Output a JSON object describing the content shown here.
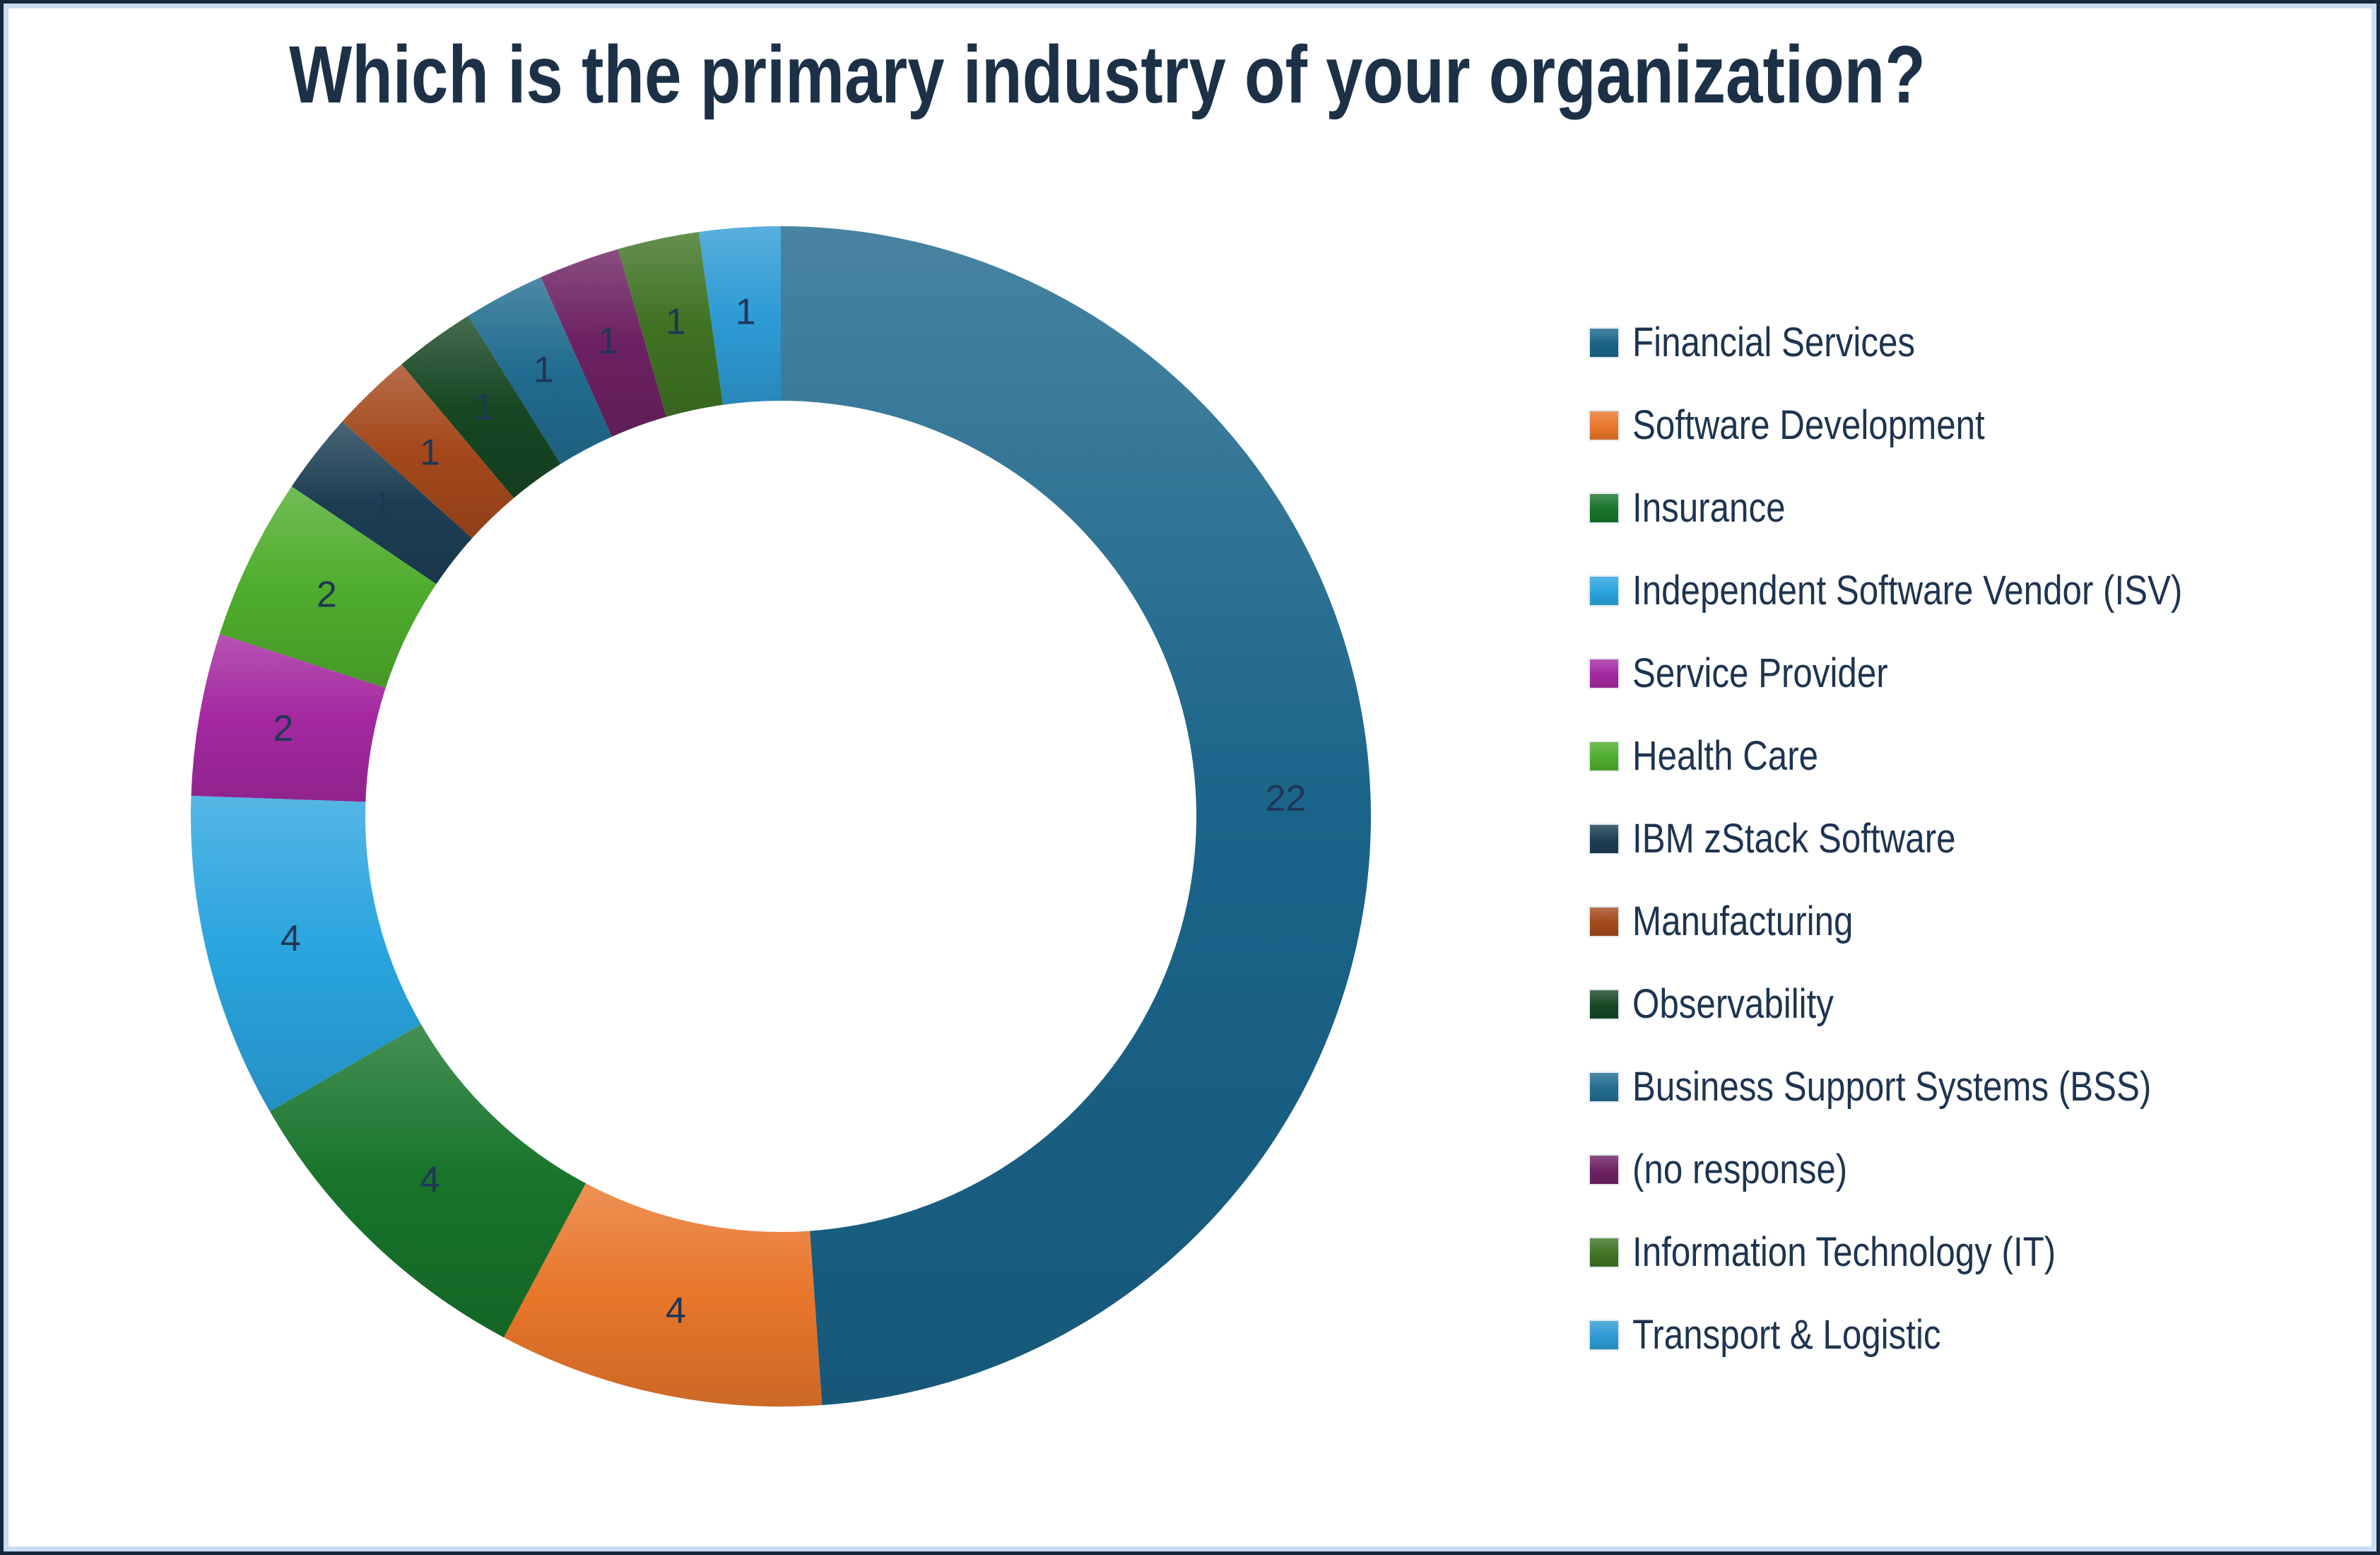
{
  "page": {
    "background_color": "#ffffff",
    "border_outer_color": "#16283c",
    "border_inner_color": "#c9dcf2"
  },
  "chart_data": {
    "type": "pie",
    "subtype": "donut",
    "title": "Which is the primary industry of your organization?",
    "title_color": "#1c3148",
    "data_label_color": "#1f3755",
    "legend_position": "right",
    "direction": "clockwise",
    "start_angle_deg": 0,
    "inner_radius_ratio": 0.7,
    "total": 45,
    "data_labels_shown": true,
    "categories": [
      "Financial Services",
      "Software Development",
      "Insurance",
      "Independent Software Vendor (ISV)",
      "Service Provider",
      "Health Care",
      "IBM zStack Software",
      "Manufacturing",
      "Observability",
      "Business Support Systems (BSS)",
      "(no response)",
      "Information Technology (IT)",
      "Transport & Logistic"
    ],
    "values": [
      22,
      4,
      4,
      4,
      2,
      2,
      1,
      1,
      1,
      1,
      1,
      1,
      1
    ],
    "segment_colors": [
      "#1a6489",
      "#e8762b",
      "#17742a",
      "#29a4de",
      "#a428a0",
      "#4fad2c",
      "#1c3e54",
      "#a4481c",
      "#164723",
      "#216c90",
      "#6c2162",
      "#3f7323",
      "#2e9bd5"
    ]
  }
}
